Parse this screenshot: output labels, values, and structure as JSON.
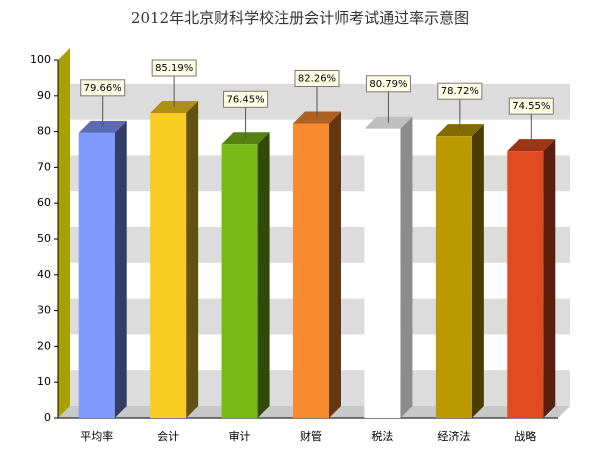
{
  "chart_data": {
    "type": "bar3d",
    "title": "2012年北京财科学校注册会计师考试通过率示意图",
    "categories": [
      "平均率",
      "会计",
      "审计",
      "财管",
      "税法",
      "经济法",
      "战略"
    ],
    "values": [
      79.66,
      85.19,
      76.45,
      82.26,
      80.79,
      78.72,
      74.55
    ],
    "value_labels": [
      "79.66%",
      "85.19%",
      "76.45%",
      "82.26%",
      "80.79%",
      "78.72%",
      "74.55%"
    ],
    "colors": [
      "#8099ff",
      "#f8cc22",
      "#7ab814",
      "#f88a30",
      "#ffffff",
      "#bb9900",
      "#e24a22"
    ],
    "ylim": [
      0,
      100
    ],
    "yticks": [
      0,
      10,
      20,
      30,
      40,
      50,
      60,
      70,
      80,
      90,
      100
    ],
    "grid": true
  }
}
